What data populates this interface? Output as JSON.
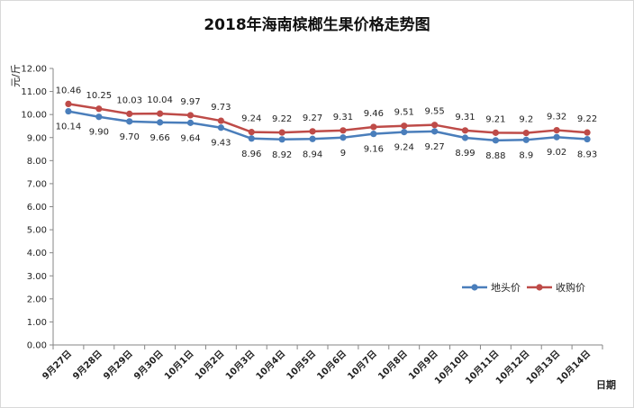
{
  "chart_data": {
    "type": "line",
    "title": "2018年海南槟榔生果价格走势图",
    "ylabel": "元/斤",
    "xlabel": "日期",
    "ylim": [
      0,
      12
    ],
    "ytick_step": 1,
    "ytick_labels": [
      "0.00",
      "1.00",
      "2.00",
      "3.00",
      "4.00",
      "5.00",
      "6.00",
      "7.00",
      "8.00",
      "9.00",
      "10.00",
      "11.00",
      "12.00"
    ],
    "grid": false,
    "legend_position": "right-middle",
    "categories": [
      "9月27日",
      "9月28日",
      "9月29日",
      "9月30日",
      "10月1日",
      "10月2日",
      "10月3日",
      "10月4日",
      "10月5日",
      "10月6日",
      "10月7日",
      "10月8日",
      "10月9日",
      "10月10日",
      "10月11日",
      "10月12日",
      "10月13日",
      "10月14日"
    ],
    "series": [
      {
        "name": "地头价",
        "color": "#4a7ebb",
        "values": [
          10.14,
          9.9,
          9.7,
          9.66,
          9.64,
          9.43,
          8.96,
          8.92,
          8.94,
          9,
          9.16,
          9.24,
          9.27,
          8.99,
          8.88,
          8.9,
          9.02,
          8.93
        ],
        "labels": [
          "10.14",
          "9.90",
          "9.70",
          "9.66",
          "9.64",
          "9.43",
          "8.96",
          "8.92",
          "8.94",
          "9",
          "9.16",
          "9.24",
          "9.27",
          "8.99",
          "8.88",
          "8.9",
          "9.02",
          "8.93"
        ]
      },
      {
        "name": "收购价",
        "color": "#be4b48",
        "values": [
          10.46,
          10.25,
          10.03,
          10.04,
          9.97,
          9.73,
          9.24,
          9.22,
          9.27,
          9.31,
          9.46,
          9.51,
          9.55,
          9.31,
          9.21,
          9.2,
          9.32,
          9.22
        ],
        "labels": [
          "10.46",
          "10.25",
          "10.03",
          "10.04",
          "9.97",
          "9.73",
          "9.24",
          "9.22",
          "9.27",
          "9.31",
          "9.46",
          "9.51",
          "9.55",
          "9.31",
          "9.21",
          "9.2",
          "9.32",
          "9.22"
        ]
      }
    ]
  }
}
